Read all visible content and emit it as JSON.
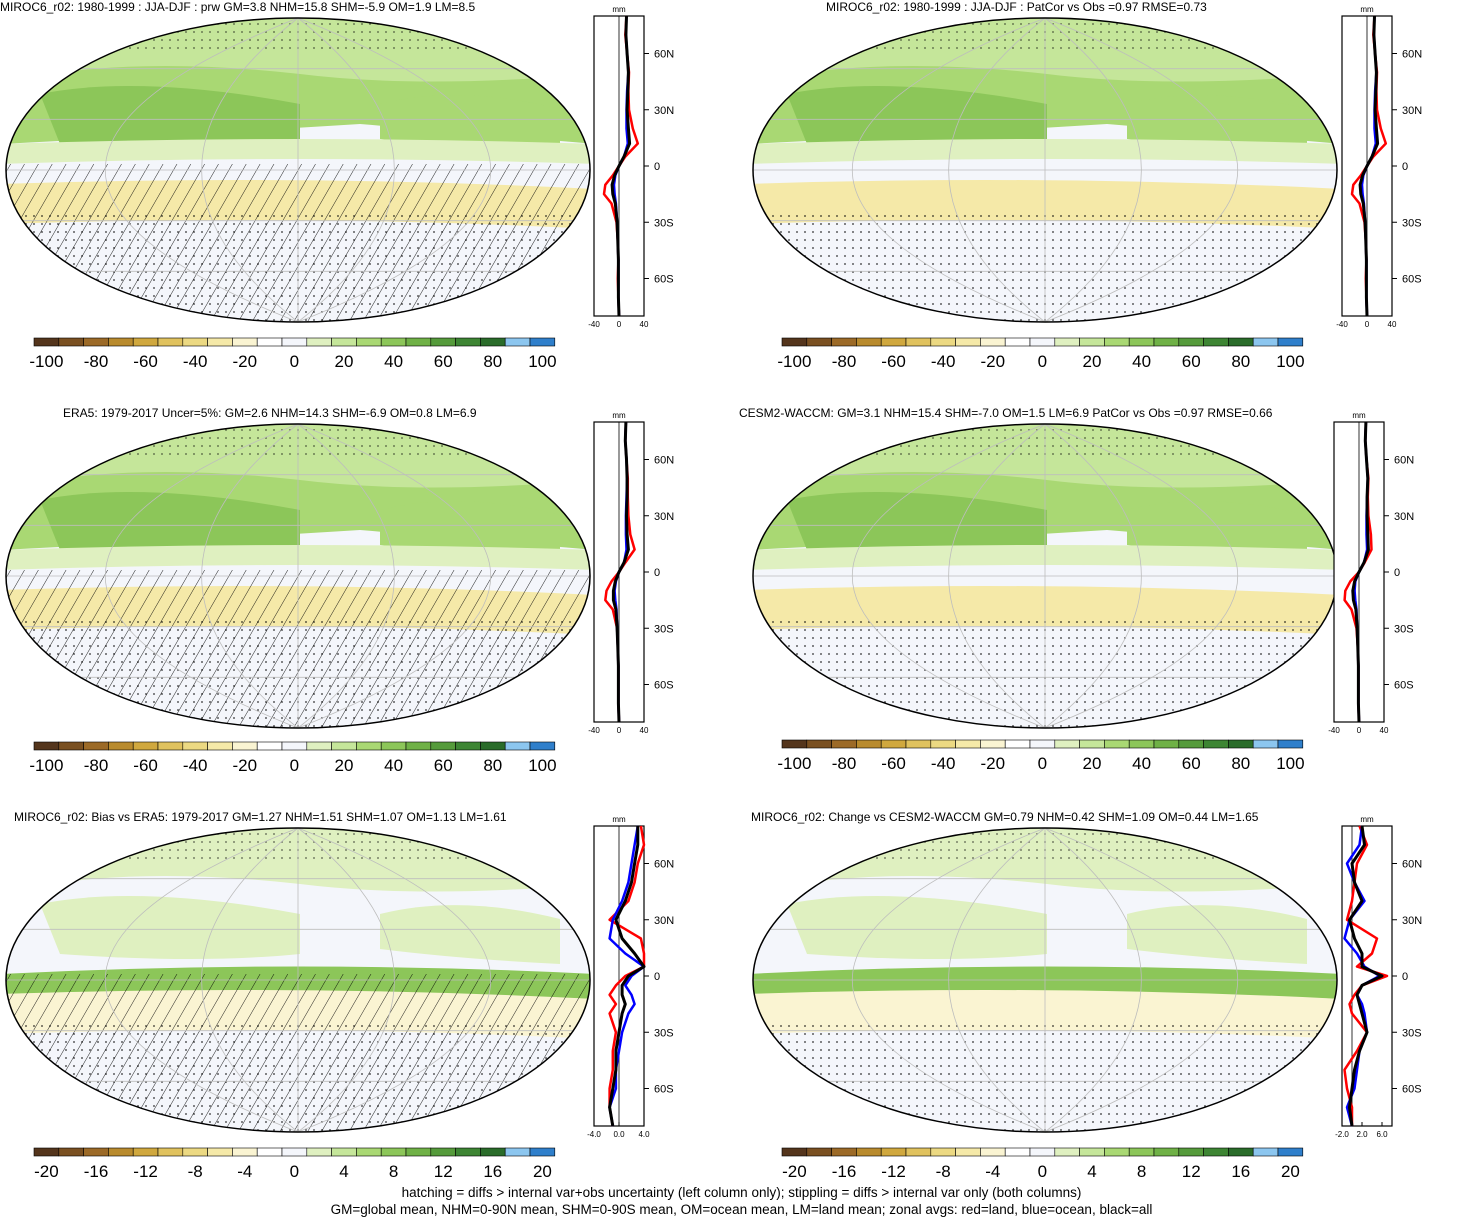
{
  "footnote": {
    "line1": "hatching = diffs > internal var+obs uncertainty (left column only); stippling = diffs > internal var only (both columns)",
    "line2": "GM=global mean, NHM=0-90N mean, SHM=0-90S mean, OM=ocean mean, LM=land mean; zonal avgs: red=land, blue=ocean, black=all"
  },
  "colors": {
    "land": "#ff0000",
    "ocean": "#0000ff",
    "all": "#000000",
    "palette": [
      "#54351c",
      "#7a5021",
      "#9c6a27",
      "#b98b2e",
      "#d0a83e",
      "#e0c25e",
      "#ecd982",
      "#f5e9a8",
      "#faf4d2",
      "#ffffff",
      "#f4f6fb",
      "#dff0c0",
      "#c5e69a",
      "#a9d873",
      "#8cc659",
      "#6fb146",
      "#559b3b",
      "#3d8533",
      "#2a6c2a",
      "#8cc6ef",
      "#2f7fcb"
    ]
  },
  "panels": [
    {
      "id": "p1",
      "title": "MIROC6_r02: 1980-1999 : JJA-DJF : prw GM=3.8 NHM=15.8 SHM=-5.9 OM=1.9 LM=8.5",
      "unit": "mm",
      "lat_ticks": [
        "60N",
        "30N",
        "0",
        "30S",
        "60S"
      ],
      "zonal_xticks": [
        "-40",
        "0",
        "40"
      ],
      "cbar_labels": [
        "-100",
        "-80",
        "-60",
        "-40",
        "-20",
        "0",
        "20",
        "40",
        "60",
        "80",
        "100"
      ],
      "hatch": true
    },
    {
      "id": "p2",
      "title": "MIROC6_r02: 1980-1999 : JJA-DJF : PatCor vs Obs =0.97 RMSE=0.73",
      "unit": "mm",
      "lat_ticks": [
        "60N",
        "30N",
        "0",
        "30S",
        "60S"
      ],
      "zonal_xticks": [
        "-40",
        "0",
        "40"
      ],
      "cbar_labels": [
        "-100",
        "-80",
        "-60",
        "-40",
        "-20",
        "0",
        "20",
        "40",
        "60",
        "80",
        "100"
      ],
      "hatch": false
    },
    {
      "id": "p3",
      "title": "ERA5: 1979-2017 Uncer=5%: GM=2.6 NHM=14.3 SHM=-6.9 OM=0.8 LM=6.9",
      "unit": "mm",
      "lat_ticks": [
        "60N",
        "30N",
        "0",
        "30S",
        "60S"
      ],
      "zonal_xticks": [
        "-40",
        "0",
        "40"
      ],
      "cbar_labels": [
        "-100",
        "-80",
        "-60",
        "-40",
        "-20",
        "0",
        "20",
        "40",
        "60",
        "80",
        "100"
      ],
      "hatch": true
    },
    {
      "id": "p4",
      "title": "CESM2-WACCM: GM=3.1 NHM=15.4 SHM=-7.0 OM=1.5 LM=6.9 PatCor vs Obs =0.97 RMSE=0.66",
      "unit": "mm",
      "lat_ticks": [
        "60N",
        "30N",
        "0",
        "30S",
        "60S"
      ],
      "zonal_xticks": [
        "-40",
        "0",
        "40"
      ],
      "cbar_labels": [
        "-100",
        "-80",
        "-60",
        "-40",
        "-20",
        "0",
        "20",
        "40",
        "60",
        "80",
        "100"
      ],
      "hatch": false
    },
    {
      "id": "p5",
      "title": "MIROC6_r02: Bias vs ERA5: 1979-2017 GM=1.27 NHM=1.51 SHM=1.07 OM=1.13 LM=1.61",
      "unit": "mm",
      "lat_ticks": [
        "60N",
        "30N",
        "0",
        "30S",
        "60S"
      ],
      "zonal_xticks": [
        "-4.0",
        "0.0",
        "4.0"
      ],
      "cbar_labels": [
        "-20",
        "-16",
        "-12",
        "-8",
        "-4",
        "0",
        "4",
        "8",
        "12",
        "16",
        "20"
      ],
      "hatch": true
    },
    {
      "id": "p6",
      "title": "MIROC6_r02: Change vs CESM2-WACCM GM=0.79 NHM=0.42 SHM=1.09 OM=0.44 LM=1.65",
      "unit": "mm",
      "lat_ticks": [
        "60N",
        "30N",
        "0",
        "30S",
        "60S"
      ],
      "zonal_xticks": [
        "-2.0",
        "2.0",
        "6.0"
      ],
      "cbar_labels": [
        "-20",
        "-16",
        "-12",
        "-8",
        "-4",
        "0",
        "4",
        "8",
        "12",
        "16",
        "20"
      ],
      "hatch": false
    }
  ],
  "chart_data": [
    {
      "type": "line",
      "title": "MIROC6_r02: 1980-1999 : JJA-DJF : prw GM=3.8 NHM=15.8 SHM=-5.9 OM=1.9 LM=8.5",
      "ylabel": "",
      "xlabel": "mm",
      "xlim": [
        -40,
        40
      ],
      "ylim": [
        -80,
        80
      ],
      "y": [
        80,
        70,
        60,
        50,
        40,
        30,
        20,
        12,
        5,
        0,
        -5,
        -10,
        -15,
        -20,
        -30,
        -40,
        -50,
        -60,
        -70,
        -80
      ],
      "series": [
        {
          "name": "land",
          "values": [
            12,
            10,
            13,
            16,
            15,
            16,
            22,
            30,
            10,
            0,
            -10,
            -22,
            -24,
            -12,
            -4,
            -2,
            -1,
            -2,
            -1,
            0
          ]
        },
        {
          "name": "ocean",
          "values": [
            12,
            11,
            13,
            15,
            13,
            12,
            12,
            14,
            8,
            0,
            -6,
            -8,
            -7,
            -5,
            -3,
            -2,
            -1,
            -1,
            -1,
            0
          ]
        },
        {
          "name": "all",
          "values": [
            12,
            11,
            13,
            15,
            14,
            13,
            15,
            17,
            8,
            0,
            -7,
            -11,
            -10,
            -6,
            -3,
            -2,
            -1,
            -1,
            -1,
            0
          ]
        }
      ]
    },
    {
      "type": "line",
      "title": "MIROC6_r02: 1980-1999 : JJA-DJF : PatCor vs Obs =0.97 RMSE=0.73",
      "xlabel": "mm",
      "xlim": [
        -40,
        40
      ],
      "ylim": [
        -80,
        80
      ],
      "y": [
        80,
        70,
        60,
        50,
        40,
        30,
        20,
        12,
        5,
        0,
        -5,
        -10,
        -15,
        -20,
        -30,
        -40,
        -50,
        -60,
        -70,
        -80
      ],
      "series": [
        {
          "name": "land",
          "values": [
            12,
            10,
            13,
            16,
            15,
            16,
            22,
            30,
            10,
            0,
            -10,
            -22,
            -24,
            -12,
            -4,
            -2,
            -1,
            -2,
            -1,
            0
          ]
        },
        {
          "name": "ocean",
          "values": [
            12,
            11,
            13,
            15,
            13,
            12,
            12,
            14,
            8,
            0,
            -6,
            -8,
            -7,
            -5,
            -3,
            -2,
            -1,
            -1,
            -1,
            0
          ]
        },
        {
          "name": "all",
          "values": [
            12,
            11,
            13,
            15,
            14,
            13,
            15,
            17,
            8,
            0,
            -7,
            -11,
            -10,
            -6,
            -3,
            -2,
            -1,
            -1,
            -1,
            0
          ]
        }
      ]
    },
    {
      "type": "line",
      "title": "ERA5: 1979-2017 Uncer=5%: GM=2.6 NHM=14.3 SHM=-6.9 OM=0.8 LM=6.9",
      "xlabel": "mm",
      "xlim": [
        -40,
        40
      ],
      "ylim": [
        -80,
        80
      ],
      "y": [
        80,
        70,
        60,
        50,
        40,
        30,
        20,
        12,
        5,
        0,
        -5,
        -10,
        -15,
        -20,
        -30,
        -40,
        -50,
        -60,
        -70,
        -80
      ],
      "series": [
        {
          "name": "land",
          "values": [
            11,
            10,
            12,
            14,
            14,
            15,
            18,
            25,
            10,
            0,
            -12,
            -20,
            -22,
            -10,
            -3,
            -2,
            -1,
            -1,
            -1,
            0
          ]
        },
        {
          "name": "ocean",
          "values": [
            11,
            10,
            12,
            13,
            12,
            11,
            11,
            12,
            8,
            0,
            -5,
            -7,
            -6,
            -4,
            -3,
            -2,
            -1,
            -1,
            -1,
            0
          ]
        },
        {
          "name": "all",
          "values": [
            11,
            10,
            12,
            13,
            13,
            12,
            13,
            15,
            8,
            0,
            -6,
            -9,
            -9,
            -5,
            -3,
            -2,
            -1,
            -1,
            -1,
            0
          ]
        }
      ]
    },
    {
      "type": "line",
      "title": "CESM2-WACCM: GM=3.1 NHM=15.4 SHM=-7.0 OM=1.5 LM=6.9 PatCor vs Obs =0.97 RMSE=0.66",
      "xlabel": "mm",
      "xlim": [
        -40,
        40
      ],
      "ylim": [
        -80,
        80
      ],
      "y": [
        80,
        70,
        60,
        50,
        40,
        30,
        20,
        12,
        5,
        0,
        -5,
        -10,
        -15,
        -20,
        -30,
        -40,
        -50,
        -60,
        -70,
        -80
      ],
      "series": [
        {
          "name": "land",
          "values": [
            11,
            10,
            12,
            15,
            14,
            15,
            19,
            20,
            9,
            0,
            -14,
            -22,
            -23,
            -12,
            -4,
            -2,
            -1,
            -1,
            -1,
            0
          ]
        },
        {
          "name": "ocean",
          "values": [
            11,
            10,
            12,
            14,
            13,
            12,
            12,
            13,
            8,
            0,
            -6,
            -7,
            -6,
            -4,
            -3,
            -2,
            -1,
            -1,
            -1,
            0
          ]
        },
        {
          "name": "all",
          "values": [
            11,
            10,
            12,
            14,
            13,
            13,
            14,
            15,
            8,
            0,
            -7,
            -10,
            -9,
            -5,
            -3,
            -2,
            -1,
            -1,
            -1,
            0
          ]
        }
      ]
    },
    {
      "type": "line",
      "title": "MIROC6_r02: Bias vs ERA5: 1979-2017 GM=1.27 NHM=1.51 SHM=1.07 OM=1.13 LM=1.61",
      "xlabel": "mm",
      "xlim": [
        -4,
        4
      ],
      "ylim": [
        -80,
        80
      ],
      "y": [
        80,
        70,
        60,
        50,
        40,
        30,
        20,
        12,
        5,
        0,
        -5,
        -10,
        -15,
        -20,
        -30,
        -40,
        -50,
        -60,
        -70,
        -80
      ],
      "series": [
        {
          "name": "land",
          "values": [
            3.5,
            4.0,
            3.0,
            2.5,
            1.5,
            -1.5,
            3.5,
            4.0,
            4.0,
            1.0,
            -0.5,
            -1.5,
            -0.5,
            -1.5,
            -0.5,
            -1.0,
            -1.0,
            -1.5,
            -1.5,
            -1.0
          ]
        },
        {
          "name": "ocean",
          "values": [
            3.0,
            2.5,
            2.0,
            1.5,
            0.5,
            -1.0,
            -1.5,
            1.0,
            4.0,
            2.0,
            1.0,
            2.0,
            2.5,
            1.5,
            0.5,
            0.0,
            -0.5,
            -0.5,
            -1.5,
            -1.0
          ]
        },
        {
          "name": "all",
          "values": [
            3.0,
            3.0,
            2.5,
            2.0,
            1.0,
            -0.5,
            0.5,
            2.5,
            4.0,
            1.5,
            0.5,
            0.5,
            1.0,
            0.5,
            0.0,
            -0.5,
            -0.5,
            -1.0,
            -1.5,
            -1.0
          ]
        }
      ]
    },
    {
      "type": "line",
      "title": "MIROC6_r02: Change vs CESM2-WACCM GM=0.79 NHM=0.42 SHM=1.09 OM=0.44 LM=1.65",
      "xlabel": "mm",
      "xlim": [
        -2,
        8
      ],
      "ylim": [
        -80,
        80
      ],
      "y": [
        80,
        70,
        60,
        50,
        40,
        30,
        20,
        12,
        5,
        0,
        -5,
        -10,
        -15,
        -20,
        -30,
        -40,
        -50,
        -60,
        -70,
        -80
      ],
      "series": [
        {
          "name": "land",
          "values": [
            1.5,
            3.0,
            1.0,
            0.5,
            0.0,
            -1.0,
            5.0,
            4.0,
            1.0,
            7.0,
            2.0,
            0.5,
            -0.5,
            0.0,
            3.0,
            1.0,
            -1.5,
            -1.0,
            0.0,
            0.0
          ]
        },
        {
          "name": "ocean",
          "values": [
            2.0,
            1.5,
            -1.0,
            0.5,
            2.5,
            -0.5,
            -1.5,
            1.0,
            2.5,
            5.5,
            2.0,
            1.0,
            2.0,
            2.5,
            3.0,
            1.5,
            1.0,
            0.5,
            -1.0,
            0.0
          ]
        },
        {
          "name": "all",
          "values": [
            2.0,
            2.5,
            0.0,
            0.5,
            2.0,
            -0.5,
            0.5,
            2.0,
            2.0,
            6.0,
            2.0,
            1.0,
            1.5,
            2.0,
            3.0,
            1.5,
            0.5,
            0.0,
            -0.5,
            0.0
          ]
        }
      ]
    }
  ]
}
